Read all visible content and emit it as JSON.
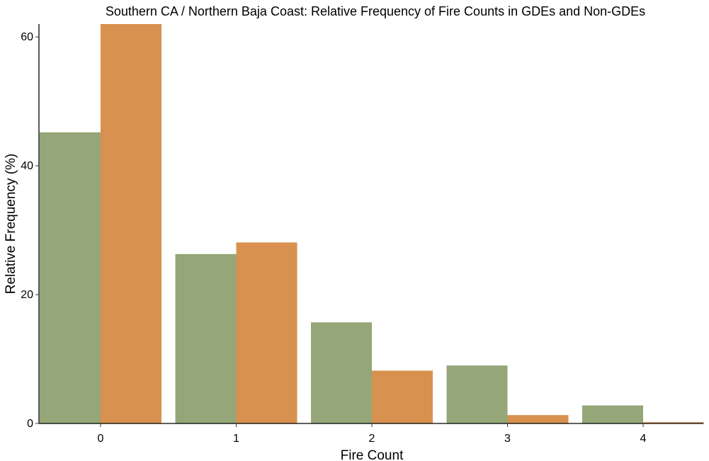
{
  "chart_data": {
    "type": "bar",
    "title": "Southern CA / Northern Baja Coast: Relative Frequency of Fire Counts in GDEs and Non-GDEs",
    "xlabel": "Fire Count",
    "ylabel": "Relative Frequency (%)",
    "categories": [
      "0",
      "1",
      "2",
      "3",
      "4"
    ],
    "ylim": [
      0,
      62
    ],
    "yticks": [
      0,
      20,
      40,
      60
    ],
    "grid": false,
    "legend": "none",
    "series": [
      {
        "values": [
          45.2,
          26.3,
          15.7,
          9.0,
          2.8
        ],
        "color": "#95a678"
      },
      {
        "values": [
          62.5,
          28.1,
          8.2,
          1.3,
          0.2
        ],
        "color": "#d8914e"
      }
    ]
  }
}
